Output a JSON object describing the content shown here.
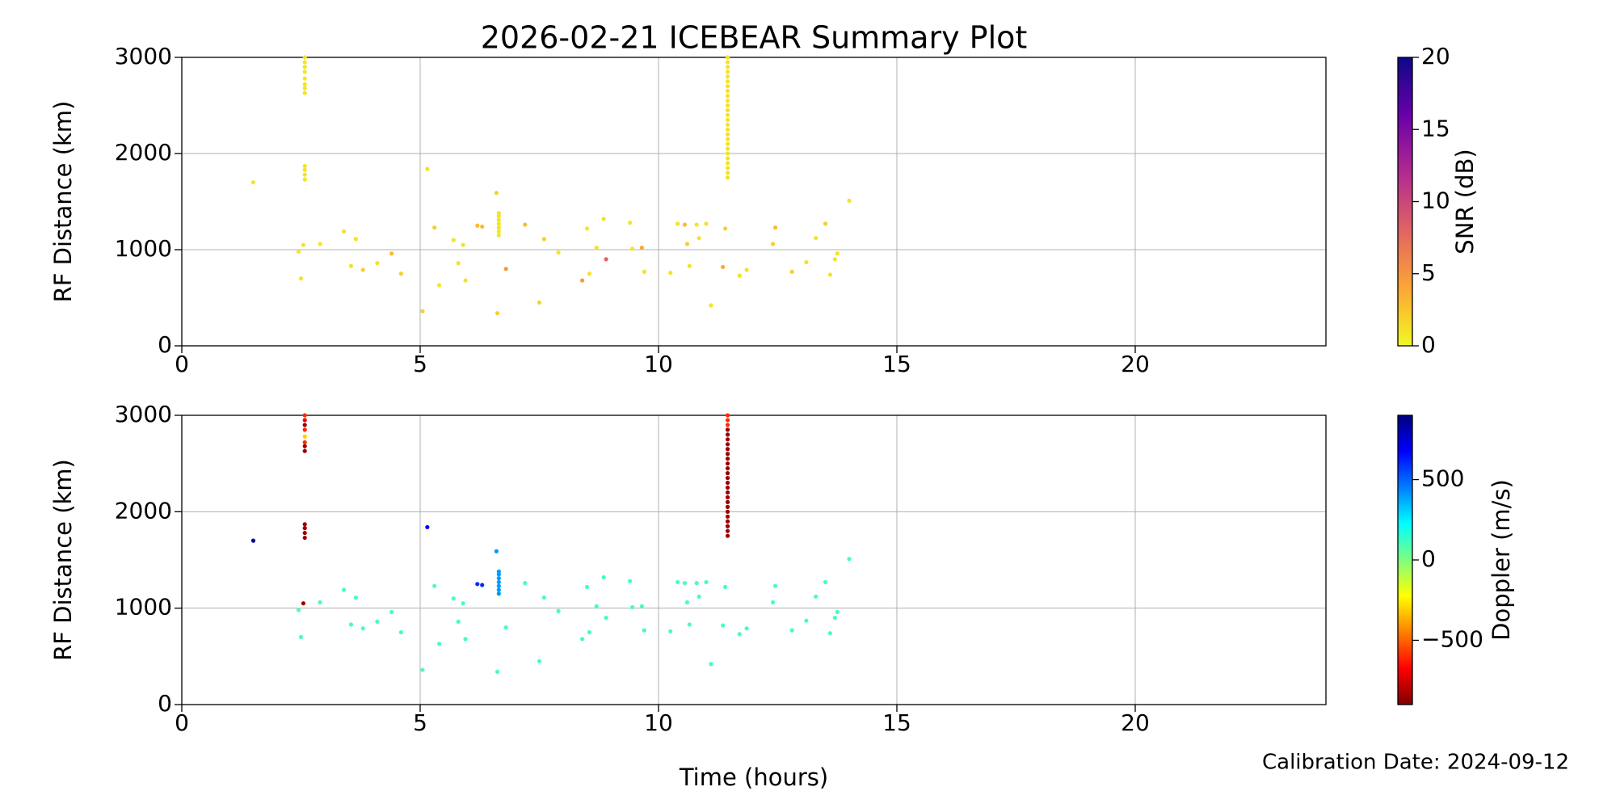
{
  "chart_data": [
    {
      "type": "scatter",
      "title": "2026-02-21 ICEBEAR Summary Plot",
      "ylabel": "RF Distance (km)",
      "xlim": [
        0,
        24
      ],
      "xticks": [
        0,
        5,
        10,
        15,
        20
      ],
      "ylim": [
        0,
        3000
      ],
      "yticks": [
        0,
        1000,
        2000,
        3000
      ],
      "grid": true,
      "colorbar_label": "SNR (dB)",
      "clim": [
        0,
        20
      ],
      "cticks": [
        0,
        5,
        10,
        15,
        20
      ],
      "colormap": [
        "#f0f921",
        "#fca636",
        "#e16462",
        "#b12a90",
        "#6a00a8",
        "#0d0887"
      ],
      "x": [
        1.5,
        2.45,
        2.5,
        2.55,
        2.9,
        2.58,
        2.58,
        2.58,
        2.58,
        2.58,
        2.58,
        2.58,
        2.58,
        2.58,
        2.58,
        2.58,
        2.58,
        3.4,
        3.55,
        3.65,
        3.8,
        4.1,
        4.4,
        4.6,
        5.05,
        5.15,
        5.3,
        5.4,
        5.7,
        5.8,
        5.9,
        5.95,
        6.2,
        6.3,
        6.6,
        6.62,
        6.65,
        6.65,
        6.65,
        6.65,
        6.65,
        6.65,
        6.65,
        6.8,
        7.2,
        7.5,
        7.6,
        7.9,
        8.4,
        8.5,
        8.55,
        8.7,
        8.85,
        8.9,
        9.4,
        9.45,
        9.65,
        9.7,
        10.25,
        10.4,
        10.55,
        10.6,
        10.65,
        10.8,
        10.85,
        11.0,
        11.1,
        11.35,
        11.4,
        11.45,
        11.45,
        11.45,
        11.45,
        11.45,
        11.45,
        11.45,
        11.45,
        11.45,
        11.45,
        11.45,
        11.45,
        11.45,
        11.45,
        11.45,
        11.45,
        11.45,
        11.45,
        11.45,
        11.45,
        11.45,
        11.45,
        11.45,
        11.45,
        11.45,
        11.45,
        11.7,
        11.85,
        12.4,
        12.45,
        12.8,
        13.1,
        13.3,
        13.5,
        13.6,
        13.7,
        13.75,
        14.0
      ],
      "y": [
        1700,
        980,
        700,
        1050,
        1060,
        2630,
        2680,
        2720,
        2780,
        2850,
        2900,
        2950,
        3000,
        1730,
        1780,
        1830,
        1870,
        1190,
        830,
        1110,
        790,
        860,
        960,
        750,
        360,
        1840,
        1230,
        630,
        1100,
        860,
        1050,
        680,
        1250,
        1240,
        1590,
        340,
        1150,
        1190,
        1230,
        1270,
        1310,
        1350,
        1380,
        800,
        1260,
        450,
        1110,
        970,
        680,
        1220,
        750,
        1020,
        1320,
        900,
        1280,
        1010,
        1020,
        770,
        760,
        1270,
        1260,
        1060,
        830,
        1260,
        1120,
        1270,
        420,
        820,
        1220,
        1750,
        1800,
        1850,
        1900,
        1950,
        2000,
        2050,
        2100,
        2150,
        2200,
        2250,
        2300,
        2350,
        2400,
        2450,
        2500,
        2550,
        2600,
        2650,
        2700,
        2750,
        2800,
        2850,
        2900,
        2950,
        3000,
        730,
        790,
        1060,
        1230,
        770,
        870,
        1120,
        1270,
        740,
        900,
        960,
        1510
      ],
      "c": [
        1,
        1,
        1,
        1,
        1,
        1,
        1,
        1,
        1,
        1,
        1,
        1,
        1,
        1,
        1,
        1,
        1,
        1,
        1,
        1,
        2,
        1,
        3,
        2,
        2,
        1,
        2,
        1,
        1,
        1,
        1,
        1,
        3,
        3,
        2,
        2,
        1,
        1,
        1,
        1,
        1,
        1,
        1,
        5,
        3,
        2,
        2,
        1,
        5,
        1,
        1,
        1,
        1,
        8,
        1,
        1,
        4,
        1,
        1,
        1,
        3,
        2,
        1,
        1,
        1,
        1,
        1,
        4,
        2,
        1,
        1,
        1,
        1,
        1,
        1,
        1,
        1,
        1,
        1,
        1,
        1,
        1,
        1,
        1,
        1,
        1,
        1,
        1,
        1,
        1,
        1,
        1,
        1,
        1,
        1,
        1,
        1,
        2,
        3,
        2,
        1,
        1,
        2,
        1,
        1,
        1,
        1
      ]
    },
    {
      "type": "scatter",
      "ylabel": "RF Distance (km)",
      "xlabel": "Time (hours)",
      "xlim": [
        0,
        24
      ],
      "xticks": [
        0,
        5,
        10,
        15,
        20
      ],
      "ylim": [
        0,
        3000
      ],
      "yticks": [
        0,
        1000,
        2000,
        3000
      ],
      "grid": true,
      "colorbar_label": "Doppler (m/s)",
      "clim": [
        -900,
        900
      ],
      "cticks": [
        {
          "value": -500,
          "label": "−500"
        },
        0,
        500
      ],
      "colormap": [
        "#7f0000",
        "#ff0000",
        "#ff7f00",
        "#ffff00",
        "#7fff7f",
        "#00ffff",
        "#007fff",
        "#0000ff",
        "#00007f"
      ],
      "x": [
        1.5,
        2.45,
        2.5,
        2.55,
        2.9,
        2.58,
        2.58,
        2.58,
        2.58,
        2.58,
        2.58,
        2.58,
        2.58,
        2.58,
        2.58,
        2.58,
        2.58,
        3.4,
        3.55,
        3.65,
        3.8,
        4.1,
        4.4,
        4.6,
        5.05,
        5.15,
        5.3,
        5.4,
        5.7,
        5.8,
        5.9,
        5.95,
        6.2,
        6.3,
        6.6,
        6.62,
        6.65,
        6.65,
        6.65,
        6.65,
        6.65,
        6.65,
        6.65,
        6.8,
        7.2,
        7.5,
        7.6,
        7.9,
        8.4,
        8.5,
        8.55,
        8.7,
        8.85,
        8.9,
        9.4,
        9.45,
        9.65,
        9.7,
        10.25,
        10.4,
        10.55,
        10.6,
        10.65,
        10.8,
        10.85,
        11.0,
        11.1,
        11.35,
        11.4,
        11.45,
        11.45,
        11.45,
        11.45,
        11.45,
        11.45,
        11.45,
        11.45,
        11.45,
        11.45,
        11.45,
        11.45,
        11.45,
        11.45,
        11.45,
        11.45,
        11.45,
        11.45,
        11.45,
        11.45,
        11.45,
        11.45,
        11.45,
        11.45,
        11.45,
        11.45,
        11.7,
        11.85,
        12.4,
        12.45,
        12.8,
        13.1,
        13.3,
        13.5,
        13.6,
        13.7,
        13.75,
        14.0
      ],
      "y": [
        1700,
        980,
        700,
        1050,
        1060,
        2630,
        2680,
        2720,
        2780,
        2850,
        2900,
        2950,
        3000,
        1730,
        1780,
        1830,
        1870,
        1190,
        830,
        1110,
        790,
        860,
        960,
        750,
        360,
        1840,
        1230,
        630,
        1100,
        860,
        1050,
        680,
        1250,
        1240,
        1590,
        340,
        1150,
        1190,
        1230,
        1270,
        1310,
        1350,
        1380,
        800,
        1260,
        450,
        1110,
        970,
        680,
        1220,
        750,
        1020,
        1320,
        900,
        1280,
        1010,
        1020,
        770,
        760,
        1270,
        1260,
        1060,
        830,
        1260,
        1120,
        1270,
        420,
        820,
        1220,
        1750,
        1800,
        1850,
        1900,
        1950,
        2000,
        2050,
        2100,
        2150,
        2200,
        2250,
        2300,
        2350,
        2400,
        2450,
        2500,
        2550,
        2600,
        2650,
        2700,
        2750,
        2800,
        2850,
        2900,
        2950,
        3000,
        730,
        790,
        1060,
        1230,
        770,
        870,
        1120,
        1270,
        740,
        900,
        960,
        1510
      ],
      "c": [
        850,
        100,
        100,
        -850,
        100,
        -850,
        -850,
        -600,
        -300,
        -600,
        -850,
        -700,
        -600,
        -850,
        -850,
        -850,
        -850,
        100,
        100,
        100,
        100,
        100,
        100,
        100,
        100,
        700,
        100,
        100,
        100,
        100,
        100,
        100,
        600,
        600,
        400,
        100,
        400,
        400,
        400,
        400,
        400,
        400,
        400,
        100,
        100,
        100,
        100,
        100,
        100,
        100,
        100,
        100,
        100,
        100,
        100,
        100,
        100,
        100,
        100,
        100,
        100,
        100,
        100,
        100,
        100,
        100,
        100,
        100,
        100,
        -850,
        -850,
        -850,
        -850,
        -850,
        -850,
        -850,
        -850,
        -850,
        -850,
        -850,
        -850,
        -850,
        -850,
        -850,
        -850,
        -850,
        -850,
        -850,
        -850,
        -850,
        -850,
        -850,
        -600,
        -600,
        -600,
        100,
        100,
        100,
        100,
        100,
        100,
        100,
        100,
        100,
        100,
        100,
        100
      ]
    }
  ],
  "annotation": "Calibration Date: 2024-09-12"
}
